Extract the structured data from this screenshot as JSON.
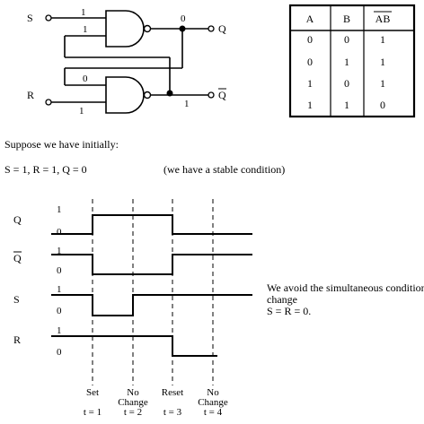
{
  "circuit": {
    "input_s": "S",
    "input_r": "R",
    "output_q": "Q",
    "output_qbar": "Q",
    "wire_values": {
      "s_in": "1",
      "top_feedback_in": "1",
      "q_out": "0",
      "bottom_feedback_in": "0",
      "r_in": "1",
      "qbar_out": "1"
    }
  },
  "truth_table": {
    "headers": [
      "A",
      "B",
      "AB"
    ],
    "rows": [
      [
        "0",
        "0",
        "1"
      ],
      [
        "0",
        "1",
        "1"
      ],
      [
        "1",
        "0",
        "1"
      ],
      [
        "1",
        "1",
        "0"
      ]
    ]
  },
  "text": {
    "initial_label": "Suppose we have initially:",
    "initial_condition": "S = 1,  R = 1,  Q = 0",
    "stable_note": "(we have a stable condition)",
    "avoid_note_line1": "We avoid the simultaneous condition",
    "avoid_note_line2": "change",
    "avoid_note_line3": "S = R = 0."
  },
  "timing": {
    "signals": [
      {
        "name": "Q",
        "levels": [
          0,
          1,
          1,
          0,
          0
        ]
      },
      {
        "name": "Q",
        "levels": [
          1,
          0,
          0,
          1,
          1
        ]
      },
      {
        "name": "S",
        "levels": [
          1,
          0,
          1,
          1,
          1
        ]
      },
      {
        "name": "R",
        "levels": [
          1,
          1,
          1,
          0,
          0
        ]
      }
    ],
    "level_labels": {
      "high": "1",
      "low": "0"
    },
    "events": [
      {
        "name": "Set",
        "name2": "",
        "time": "t = 1"
      },
      {
        "name": "No",
        "name2": "Change",
        "time": "t = 2"
      },
      {
        "name": "Reset",
        "name2": "",
        "time": "t = 3"
      },
      {
        "name": "No",
        "name2": "Change",
        "time": "t = 4"
      }
    ]
  }
}
